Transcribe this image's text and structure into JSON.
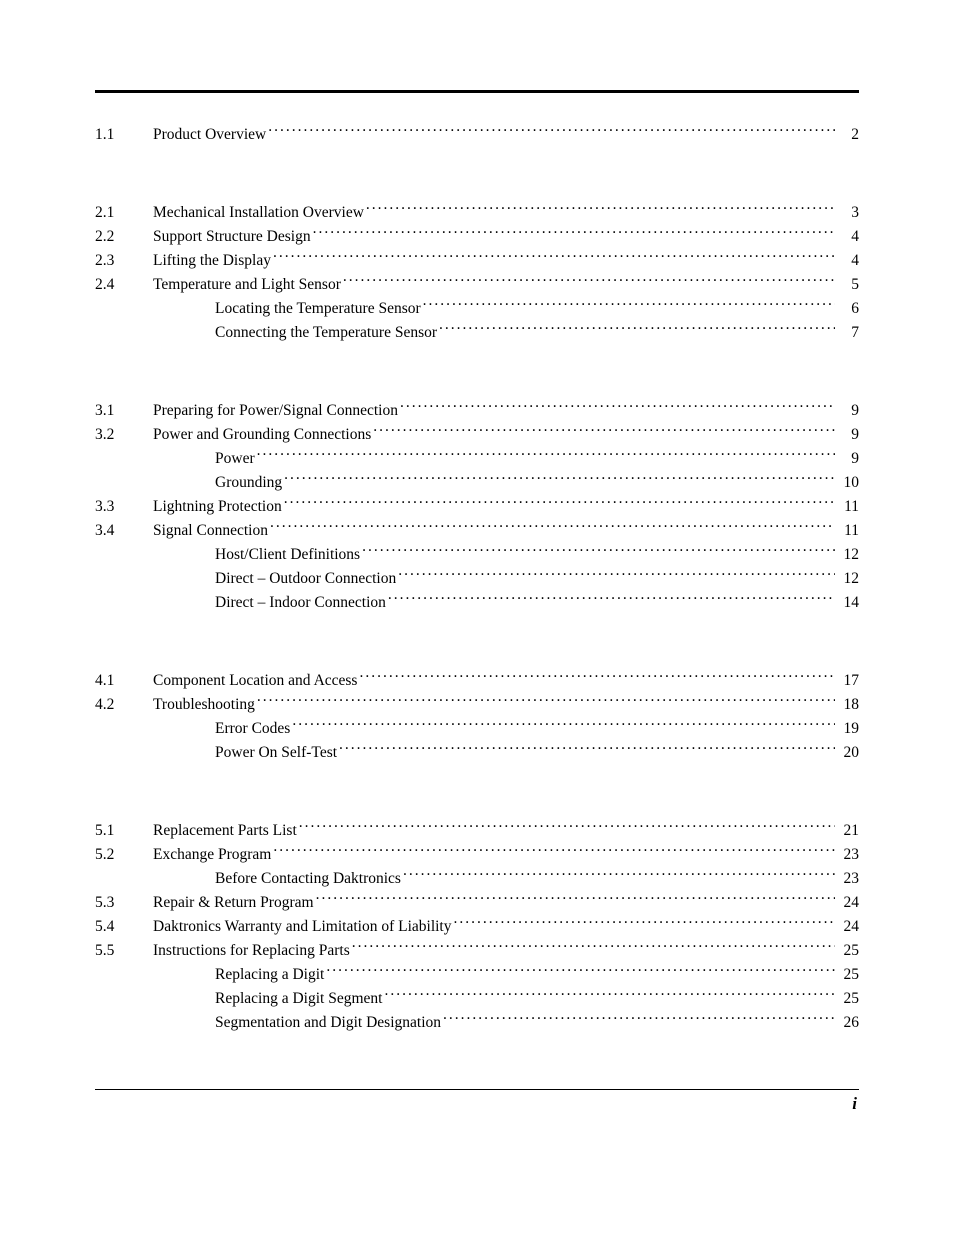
{
  "page": {
    "footer_page_number": "i"
  },
  "sections": [
    {
      "entries": [
        {
          "num": "1.1",
          "indent": 0,
          "title": "Product Overview",
          "page": "2"
        }
      ]
    },
    {
      "entries": [
        {
          "num": "2.1",
          "indent": 0,
          "title": "Mechanical Installation Overview",
          "page": "3"
        },
        {
          "num": "2.2",
          "indent": 0,
          "title": "Support Structure Design",
          "page": "4"
        },
        {
          "num": "2.3",
          "indent": 0,
          "title": "Lifting the Display",
          "page": "4"
        },
        {
          "num": "2.4",
          "indent": 0,
          "title": "Temperature and Light Sensor",
          "page": "5"
        },
        {
          "num": "",
          "indent": 1,
          "title": "Locating the Temperature Sensor",
          "page": "6"
        },
        {
          "num": "",
          "indent": 1,
          "title": "Connecting the Temperature Sensor",
          "page": "7"
        }
      ]
    },
    {
      "entries": [
        {
          "num": "3.1",
          "indent": 0,
          "title": "Preparing for Power/Signal Connection",
          "page": "9"
        },
        {
          "num": "3.2",
          "indent": 0,
          "title": "Power and Grounding Connections",
          "page": "9"
        },
        {
          "num": "",
          "indent": 1,
          "title": "Power",
          "page": "9"
        },
        {
          "num": "",
          "indent": 1,
          "title": "Grounding",
          "page": "10"
        },
        {
          "num": "3.3",
          "indent": 0,
          "title": "Lightning Protection",
          "page": "11"
        },
        {
          "num": "3.4",
          "indent": 0,
          "title": "Signal Connection",
          "page": "11"
        },
        {
          "num": "",
          "indent": 1,
          "title": "Host/Client Definitions",
          "page": "12"
        },
        {
          "num": "",
          "indent": 1,
          "title": "Direct – Outdoor Connection",
          "page": "12"
        },
        {
          "num": "",
          "indent": 1,
          "title": "Direct – Indoor Connection",
          "page": "14"
        }
      ]
    },
    {
      "entries": [
        {
          "num": "4.1",
          "indent": 0,
          "title": "Component Location and Access",
          "page": "17"
        },
        {
          "num": "4.2",
          "indent": 0,
          "title": "Troubleshooting",
          "page": "18"
        },
        {
          "num": "",
          "indent": 1,
          "title": "Error Codes",
          "page": "19"
        },
        {
          "num": "",
          "indent": 1,
          "title": "Power On Self-Test",
          "page": "20"
        }
      ]
    },
    {
      "entries": [
        {
          "num": "5.1",
          "indent": 0,
          "title": "Replacement Parts List",
          "page": "21"
        },
        {
          "num": "5.2",
          "indent": 0,
          "title": "Exchange Program",
          "page": "23"
        },
        {
          "num": "",
          "indent": 1,
          "title": "Before Contacting Daktronics",
          "page": "23"
        },
        {
          "num": "5.3",
          "indent": 0,
          "title": "Repair & Return Program",
          "page": "24"
        },
        {
          "num": "5.4",
          "indent": 0,
          "title": "Daktronics Warranty and Limitation of Liability",
          "page": "24"
        },
        {
          "num": "5.5",
          "indent": 0,
          "title": "Instructions for Replacing Parts",
          "page": "25"
        },
        {
          "num": "",
          "indent": 1,
          "title": "Replacing a Digit",
          "page": "25"
        },
        {
          "num": "",
          "indent": 1,
          "title": "Replacing a Digit Segment",
          "page": "25"
        },
        {
          "num": "",
          "indent": 1,
          "title": "Segmentation and Digit Designation",
          "page": "26"
        }
      ]
    }
  ]
}
